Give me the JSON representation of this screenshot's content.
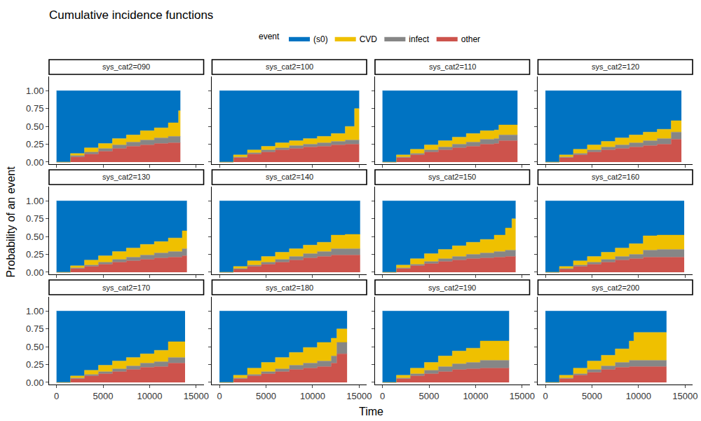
{
  "chart_data": {
    "type": "area",
    "title": "Cumulative incidence functions",
    "x_label": "Time",
    "y_label": "Probability of an event",
    "legend_title": "event",
    "legend": "top",
    "stacked": true,
    "grid": false,
    "xlim": [
      -800,
      15800
    ],
    "xticks": [
      0,
      5000,
      10000,
      15000
    ],
    "ylim": [
      -0.03,
      1.2
    ],
    "yticks": [
      {
        "value": 0,
        "label": "0.00"
      },
      0.25,
      {
        "value": 0.5,
        "label": "0.50"
      },
      0.75,
      {
        "value": 1,
        "label": "1.00"
      }
    ],
    "series": [
      {
        "name": "(s0)",
        "color": "#0073C2"
      },
      {
        "name": "CVD",
        "color": "#EFC000"
      },
      {
        "name": "infect",
        "color": "#868686"
      },
      {
        "name": "other",
        "color": "#CD534C"
      }
    ],
    "panels": [
      {
        "title": "sys_cat2=090",
        "x": [
          0,
          1500,
          3000,
          4500,
          6000,
          7500,
          9000,
          10500,
          12000,
          13100,
          13300
        ],
        "values": [
          [
            1,
            0.88,
            0.8,
            0.74,
            0.67,
            0.62,
            0.56,
            0.52,
            0.45,
            0.28,
            0.28
          ],
          [
            0,
            0.03,
            0.06,
            0.07,
            0.09,
            0.1,
            0.13,
            0.14,
            0.19,
            0.36,
            0.36
          ],
          [
            0,
            0.02,
            0.03,
            0.04,
            0.05,
            0.06,
            0.07,
            0.08,
            0.09,
            0.09,
            0.09
          ],
          [
            0,
            0.07,
            0.11,
            0.15,
            0.19,
            0.22,
            0.24,
            0.26,
            0.27,
            0.27,
            0.27
          ]
        ]
      },
      {
        "title": "sys_cat2=100",
        "x": [
          0,
          1500,
          3000,
          4500,
          6000,
          7500,
          9000,
          10500,
          12000,
          13500,
          14500,
          15000
        ],
        "values": [
          [
            1,
            0.9,
            0.83,
            0.78,
            0.73,
            0.7,
            0.67,
            0.64,
            0.6,
            0.5,
            0.25,
            0.25
          ],
          [
            0,
            0.03,
            0.04,
            0.05,
            0.07,
            0.07,
            0.08,
            0.09,
            0.11,
            0.19,
            0.44,
            0.44
          ],
          [
            0,
            0.01,
            0.02,
            0.03,
            0.03,
            0.04,
            0.04,
            0.05,
            0.05,
            0.06,
            0.06,
            0.06
          ],
          [
            0,
            0.06,
            0.11,
            0.14,
            0.17,
            0.19,
            0.21,
            0.22,
            0.24,
            0.25,
            0.25,
            0.25
          ]
        ]
      },
      {
        "title": "sys_cat2=110",
        "x": [
          0,
          1500,
          3000,
          4500,
          6000,
          7500,
          9000,
          10500,
          12000,
          12500,
          14500
        ],
        "values": [
          [
            1,
            0.9,
            0.82,
            0.76,
            0.7,
            0.65,
            0.6,
            0.56,
            0.55,
            0.48,
            0.48
          ],
          [
            0,
            0.03,
            0.06,
            0.07,
            0.09,
            0.1,
            0.12,
            0.12,
            0.12,
            0.14,
            0.14
          ],
          [
            0,
            0.01,
            0.02,
            0.03,
            0.04,
            0.05,
            0.06,
            0.07,
            0.07,
            0.08,
            0.08
          ],
          [
            0,
            0.06,
            0.1,
            0.14,
            0.17,
            0.2,
            0.22,
            0.25,
            0.26,
            0.3,
            0.3
          ]
        ]
      },
      {
        "title": "sys_cat2=120",
        "x": [
          0,
          1500,
          3000,
          4500,
          6000,
          7500,
          9000,
          10500,
          12000,
          13500,
          14600
        ],
        "values": [
          [
            1,
            0.9,
            0.82,
            0.76,
            0.71,
            0.66,
            0.62,
            0.58,
            0.54,
            0.42,
            0.42
          ],
          [
            0,
            0.03,
            0.06,
            0.07,
            0.08,
            0.1,
            0.11,
            0.12,
            0.13,
            0.16,
            0.16
          ],
          [
            0,
            0.01,
            0.02,
            0.03,
            0.04,
            0.05,
            0.06,
            0.07,
            0.08,
            0.1,
            0.1
          ],
          [
            0,
            0.06,
            0.1,
            0.14,
            0.17,
            0.19,
            0.21,
            0.23,
            0.25,
            0.32,
            0.32
          ]
        ]
      },
      {
        "title": "sys_cat2=130",
        "x": [
          0,
          1500,
          3000,
          4500,
          6000,
          7500,
          9000,
          10500,
          12000,
          13500,
          14000
        ],
        "values": [
          [
            1,
            0.91,
            0.83,
            0.77,
            0.71,
            0.66,
            0.61,
            0.57,
            0.52,
            0.42,
            0.42
          ],
          [
            0,
            0.03,
            0.07,
            0.09,
            0.11,
            0.13,
            0.15,
            0.16,
            0.19,
            0.25,
            0.25
          ],
          [
            0,
            0.01,
            0.02,
            0.03,
            0.04,
            0.05,
            0.06,
            0.07,
            0.08,
            0.1,
            0.1
          ],
          [
            0,
            0.05,
            0.08,
            0.11,
            0.14,
            0.16,
            0.18,
            0.2,
            0.21,
            0.23,
            0.23
          ]
        ]
      },
      {
        "title": "sys_cat2=140",
        "x": [
          0,
          1500,
          3000,
          4500,
          6000,
          7500,
          9000,
          10500,
          12000,
          13500,
          15100
        ],
        "values": [
          [
            1,
            0.92,
            0.84,
            0.78,
            0.72,
            0.67,
            0.62,
            0.58,
            0.48,
            0.47,
            0.47
          ],
          [
            0,
            0.03,
            0.06,
            0.08,
            0.1,
            0.11,
            0.12,
            0.13,
            0.19,
            0.2,
            0.2
          ],
          [
            0,
            0.01,
            0.02,
            0.03,
            0.04,
            0.05,
            0.06,
            0.07,
            0.09,
            0.09,
            0.09
          ],
          [
            0,
            0.04,
            0.08,
            0.11,
            0.14,
            0.17,
            0.2,
            0.22,
            0.24,
            0.24,
            0.24
          ]
        ]
      },
      {
        "title": "sys_cat2=150",
        "x": [
          0,
          1500,
          3000,
          4500,
          6000,
          7500,
          9000,
          10500,
          12000,
          13200,
          13900,
          14300
        ],
        "values": [
          [
            1,
            0.9,
            0.81,
            0.74,
            0.68,
            0.63,
            0.58,
            0.54,
            0.48,
            0.38,
            0.25,
            0.25
          ],
          [
            0,
            0.04,
            0.08,
            0.11,
            0.13,
            0.15,
            0.17,
            0.19,
            0.23,
            0.31,
            0.44,
            0.44
          ],
          [
            0,
            0.01,
            0.02,
            0.03,
            0.04,
            0.05,
            0.06,
            0.07,
            0.08,
            0.09,
            0.09,
            0.09
          ],
          [
            0,
            0.05,
            0.09,
            0.12,
            0.15,
            0.17,
            0.19,
            0.2,
            0.21,
            0.22,
            0.22,
            0.22
          ]
        ]
      },
      {
        "title": "sys_cat2=160",
        "x": [
          0,
          1500,
          3000,
          4500,
          6000,
          7500,
          9000,
          10500,
          12000,
          13500,
          14900
        ],
        "values": [
          [
            1,
            0.92,
            0.84,
            0.78,
            0.72,
            0.66,
            0.6,
            0.49,
            0.48,
            0.48,
            0.48
          ],
          [
            0,
            0.03,
            0.06,
            0.08,
            0.1,
            0.12,
            0.15,
            0.2,
            0.2,
            0.2,
            0.2
          ],
          [
            0,
            0.01,
            0.02,
            0.03,
            0.04,
            0.05,
            0.06,
            0.1,
            0.11,
            0.11,
            0.11
          ],
          [
            0,
            0.04,
            0.08,
            0.11,
            0.14,
            0.17,
            0.19,
            0.21,
            0.21,
            0.21,
            0.21
          ]
        ]
      },
      {
        "title": "sys_cat2=170",
        "x": [
          0,
          1500,
          3000,
          4500,
          6000,
          7500,
          9000,
          10500,
          12000,
          13800
        ],
        "values": [
          [
            1,
            0.91,
            0.83,
            0.76,
            0.7,
            0.65,
            0.6,
            0.55,
            0.43,
            0.43
          ],
          [
            0,
            0.03,
            0.06,
            0.09,
            0.11,
            0.12,
            0.13,
            0.16,
            0.22,
            0.22
          ],
          [
            0,
            0.01,
            0.02,
            0.03,
            0.04,
            0.05,
            0.06,
            0.07,
            0.08,
            0.08
          ],
          [
            0,
            0.05,
            0.09,
            0.12,
            0.15,
            0.18,
            0.21,
            0.22,
            0.27,
            0.27
          ]
        ]
      },
      {
        "title": "sys_cat2=180",
        "x": [
          0,
          1500,
          3000,
          4500,
          6000,
          7500,
          9000,
          10500,
          12000,
          12600,
          13700
        ],
        "values": [
          [
            1,
            0.9,
            0.8,
            0.72,
            0.65,
            0.58,
            0.51,
            0.44,
            0.38,
            0.25,
            0.25
          ],
          [
            0,
            0.04,
            0.09,
            0.13,
            0.16,
            0.18,
            0.22,
            0.26,
            0.25,
            0.19,
            0.19
          ],
          [
            0,
            0.01,
            0.02,
            0.03,
            0.04,
            0.06,
            0.07,
            0.08,
            0.1,
            0.16,
            0.16
          ],
          [
            0,
            0.05,
            0.09,
            0.12,
            0.15,
            0.18,
            0.2,
            0.22,
            0.27,
            0.4,
            0.4
          ]
        ]
      },
      {
        "title": "sys_cat2=190",
        "x": [
          0,
          1500,
          3000,
          4500,
          6000,
          7500,
          9000,
          10500,
          12000,
          13600
        ],
        "values": [
          [
            1,
            0.9,
            0.8,
            0.72,
            0.63,
            0.56,
            0.52,
            0.42,
            0.42,
            0.42
          ],
          [
            0,
            0.04,
            0.08,
            0.11,
            0.15,
            0.18,
            0.2,
            0.27,
            0.27,
            0.27
          ],
          [
            0,
            0.01,
            0.03,
            0.05,
            0.07,
            0.08,
            0.09,
            0.11,
            0.11,
            0.11
          ],
          [
            0,
            0.05,
            0.09,
            0.12,
            0.15,
            0.18,
            0.19,
            0.2,
            0.2,
            0.2
          ]
        ]
      },
      {
        "title": "sys_cat2=200",
        "x": [
          0,
          1500,
          3000,
          4500,
          6000,
          7500,
          9000,
          9500,
          10500,
          12000,
          13000
        ],
        "values": [
          [
            1,
            0.9,
            0.8,
            0.7,
            0.62,
            0.53,
            0.42,
            0.3,
            0.3,
            0.3,
            0.3
          ],
          [
            0,
            0.04,
            0.08,
            0.12,
            0.15,
            0.19,
            0.27,
            0.39,
            0.39,
            0.39,
            0.39
          ],
          [
            0,
            0.01,
            0.02,
            0.04,
            0.05,
            0.07,
            0.09,
            0.09,
            0.09,
            0.09,
            0.09
          ],
          [
            0,
            0.05,
            0.1,
            0.14,
            0.18,
            0.21,
            0.22,
            0.22,
            0.22,
            0.22,
            0.22
          ]
        ]
      }
    ]
  }
}
